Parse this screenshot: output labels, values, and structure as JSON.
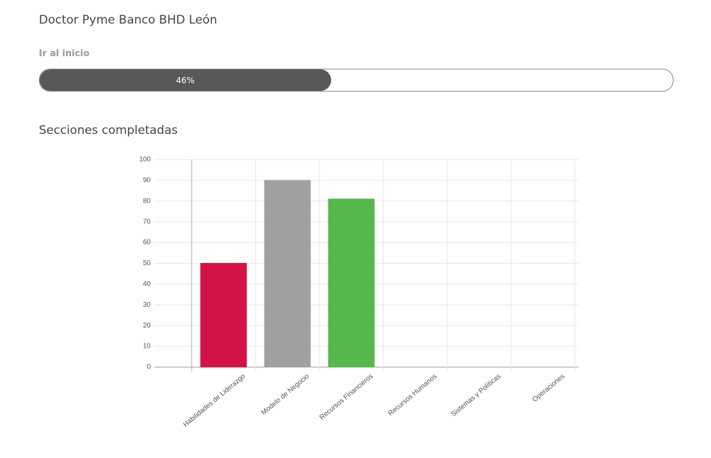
{
  "header": {
    "title": "Doctor Pyme Banco BHD León",
    "link": "Ir al inicio"
  },
  "progress": {
    "value": 46,
    "value_label": "46%"
  },
  "chart_data": {
    "type": "bar",
    "title": "Secciones completadas",
    "categories": [
      "Habilidades de Liderazgo",
      "Modelo de Negocio",
      "Recursos Financieros",
      "Recursos Humanos",
      "Sistemas y Políticas",
      "Operaciones"
    ],
    "values": [
      50,
      90,
      81,
      0,
      0,
      0
    ],
    "colors": [
      "#d31245",
      "#a0a0a0",
      "#55b84a",
      "#3aa6a0",
      "#d31245",
      "#444444"
    ],
    "ylim": [
      0,
      100
    ],
    "yticks": [
      0,
      10,
      20,
      30,
      40,
      50,
      60,
      70,
      80,
      90,
      100
    ],
    "grid": true
  }
}
